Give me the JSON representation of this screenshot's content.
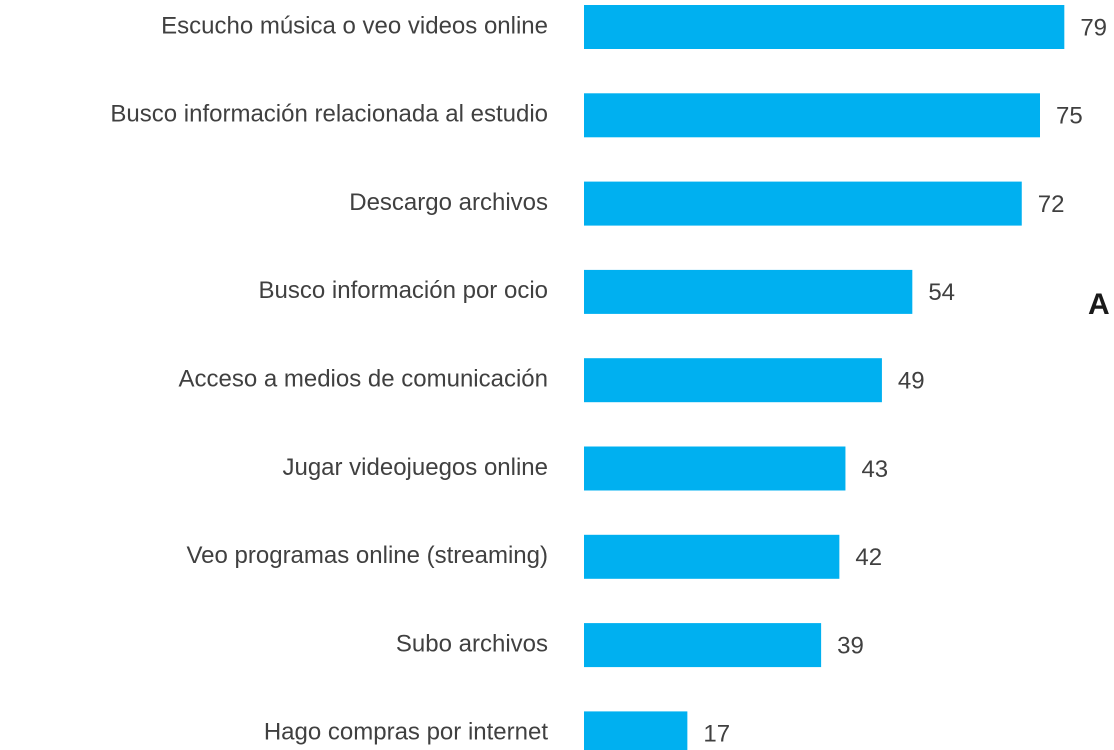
{
  "chart_data": {
    "type": "bar",
    "orientation": "horizontal",
    "categories": [
      "Escucho música o veo videos online",
      "Busco información relacionada al estudio",
      "Descargo archivos",
      "Busco información por ocio",
      "Acceso a medios de comunicación",
      "Jugar videojuegos online",
      "Veo programas online (streaming)",
      "Subo archivos",
      "Hago compras por internet"
    ],
    "values": [
      79,
      75,
      72,
      54,
      49,
      43,
      42,
      39,
      17
    ],
    "color": "#00b0f0",
    "annotation": "A"
  }
}
